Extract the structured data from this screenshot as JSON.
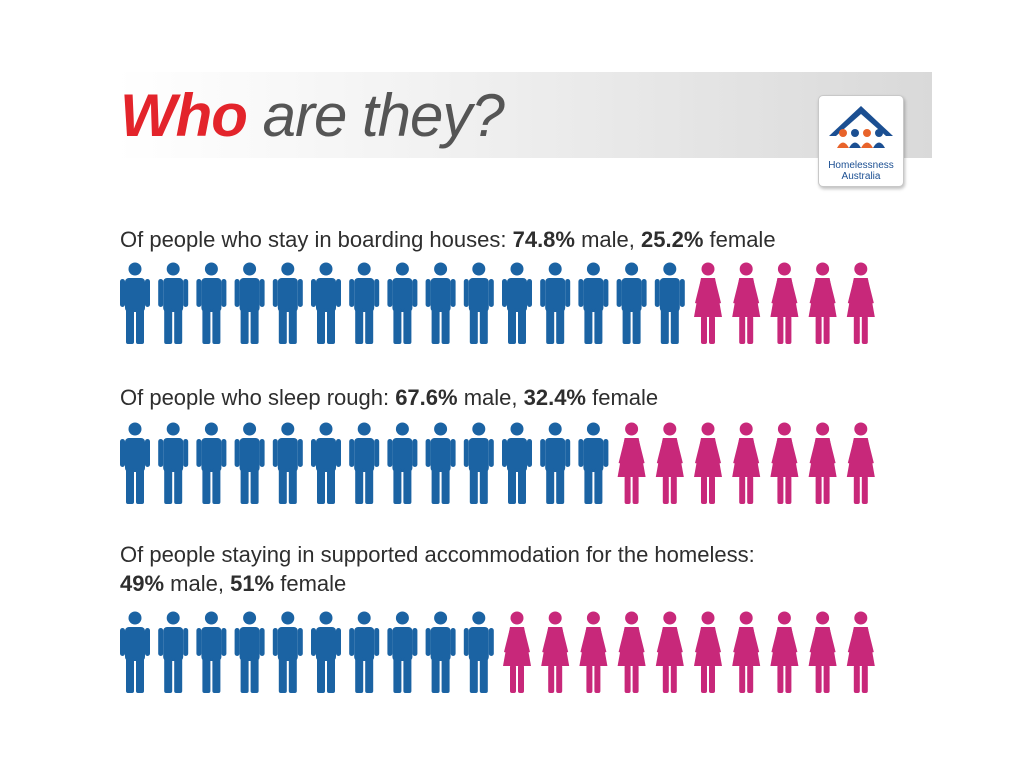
{
  "header": {
    "title_emphasis": "Who",
    "title_rest": "are they?"
  },
  "logo": {
    "line1": "Homelessness",
    "line2": "Australia",
    "roof_color": "#1b4f92",
    "people_colors": [
      "#e8632a",
      "#1b4f92",
      "#e8632a",
      "#1b4f92"
    ]
  },
  "colors": {
    "male": "#1b63a3",
    "female": "#c8287a",
    "title_red": "#e3242b"
  },
  "chart_data": {
    "type": "pictogram",
    "icons_per_row": 20,
    "series_names": [
      "male",
      "female"
    ],
    "rows": [
      {
        "label_prefix": "Of people who stay in boarding houses: ",
        "male_label": "74.8%",
        "male_word": " male, ",
        "female_label": "25.2%",
        "female_word": " female",
        "male_pct": 74.8,
        "female_pct": 25.2,
        "male_icons": 15,
        "female_icons": 5
      },
      {
        "label_prefix": "Of people who sleep rough: ",
        "male_label": "67.6%",
        "male_word": " male, ",
        "female_label": "32.4%",
        "female_word": " female",
        "male_pct": 67.6,
        "female_pct": 32.4,
        "male_icons": 13,
        "female_icons": 7
      },
      {
        "label_prefix": "Of people staying in supported accommodation for the homeless:",
        "male_label": "49%",
        "male_word": " male, ",
        "female_label": "51%",
        "female_word": " female",
        "male_pct": 49,
        "female_pct": 51,
        "male_icons": 10,
        "female_icons": 10
      }
    ]
  }
}
